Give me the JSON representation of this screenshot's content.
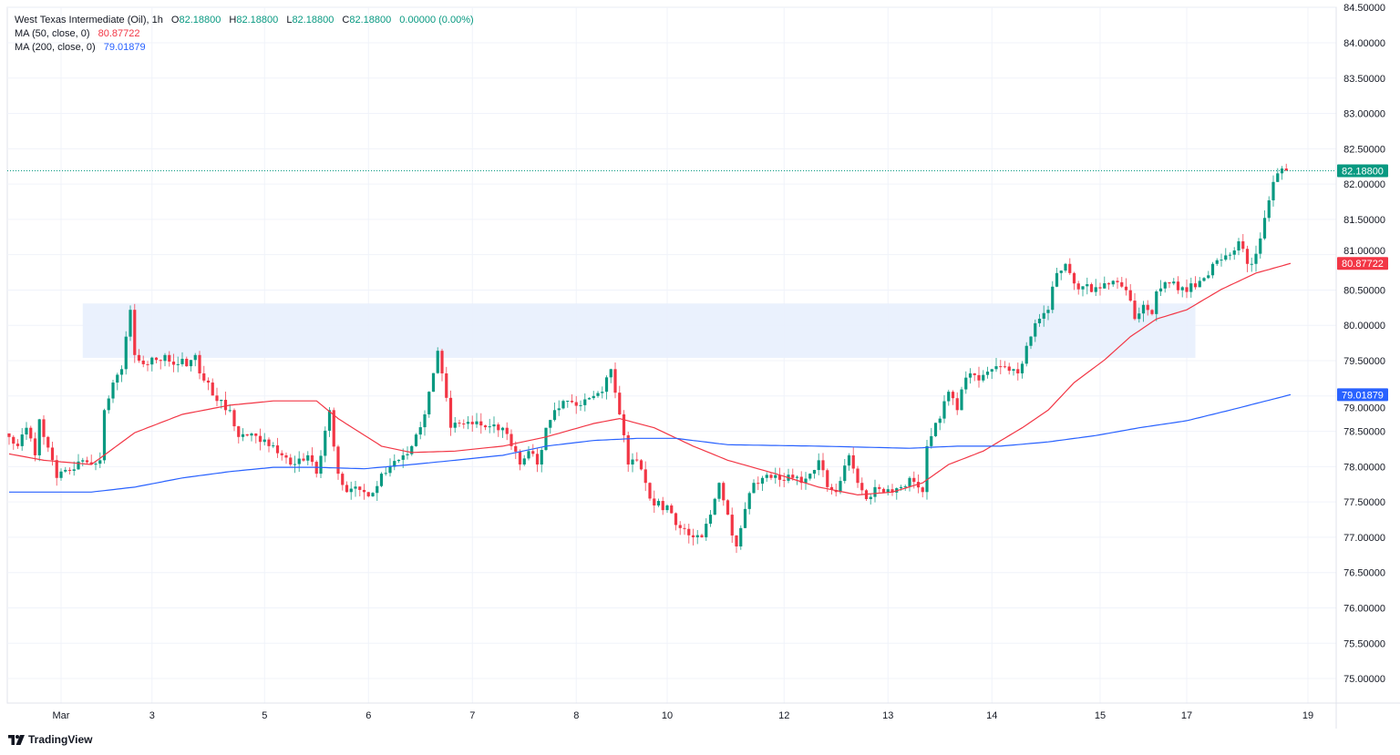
{
  "header": {
    "symbol": "West Texas Intermediate (Oil), 1h",
    "o_label": "O",
    "o": "82.18800",
    "h_label": "H",
    "h": "82.18800",
    "l_label": "L",
    "l": "82.18800",
    "c_label": "C",
    "c": "82.18800",
    "change": "0.00000 (0.00%)",
    "ma50_label": "MA (50, close, 0)",
    "ma50": "80.87722",
    "ma200_label": "MA (200, close, 0)",
    "ma200": "79.01879"
  },
  "branding": {
    "name": "TradingView"
  },
  "colors": {
    "up": "#089981",
    "down": "#f23645",
    "ma50": "#f23645",
    "ma200": "#2962ff",
    "zone": "#e8f0fd",
    "grid": "#f0f3fa"
  },
  "chart_data": {
    "type": "candlestick",
    "title": "West Texas Intermediate (Oil), 1h",
    "ylim": [
      74.75,
      84.6
    ],
    "y_ticks": [
      "75.00000",
      "75.50000",
      "76.00000",
      "76.50000",
      "77.00000",
      "77.50000",
      "78.00000",
      "78.50000",
      "79.00000",
      "79.50000",
      "80.00000",
      "80.50000",
      "81.00000",
      "81.50000",
      "82.00000",
      "82.50000",
      "83.00000",
      "83.50000",
      "84.00000",
      "84.50000"
    ],
    "x_ticks": [
      [
        "Mar",
        12
      ],
      [
        "3",
        33
      ],
      [
        "5",
        59
      ],
      [
        "6",
        83
      ],
      [
        "7",
        107
      ],
      [
        "8",
        131
      ],
      [
        "10",
        152
      ],
      [
        "12",
        179
      ],
      [
        "13",
        203
      ],
      [
        "14",
        227
      ],
      [
        "15",
        252
      ],
      [
        "17",
        272
      ],
      [
        "19",
        300
      ]
    ],
    "close_path": [
      [
        0,
        78.42
      ],
      [
        2,
        78.29
      ],
      [
        4,
        78.55
      ],
      [
        6,
        78.16
      ],
      [
        7,
        78.67
      ],
      [
        8,
        78.42
      ],
      [
        11,
        77.84
      ],
      [
        14,
        77.94
      ],
      [
        17,
        78.09
      ],
      [
        19,
        78.03
      ],
      [
        21,
        78.09
      ],
      [
        22,
        78.8
      ],
      [
        24,
        79.19
      ],
      [
        26,
        79.38
      ],
      [
        27,
        79.84
      ],
      [
        28,
        80.22
      ],
      [
        29,
        79.58
      ],
      [
        31,
        79.45
      ],
      [
        34,
        79.51
      ],
      [
        36,
        79.58
      ],
      [
        39,
        79.45
      ],
      [
        42,
        79.51
      ],
      [
        43,
        79.58
      ],
      [
        44,
        79.32
      ],
      [
        46,
        79.19
      ],
      [
        48,
        78.93
      ],
      [
        51,
        78.8
      ],
      [
        53,
        78.42
      ],
      [
        55,
        78.44
      ],
      [
        58,
        78.35
      ],
      [
        60,
        78.29
      ],
      [
        63,
        78.16
      ],
      [
        65,
        78.03
      ],
      [
        69,
        78.16
      ],
      [
        71,
        77.9
      ],
      [
        74,
        78.8
      ],
      [
        76,
        77.9
      ],
      [
        78,
        77.64
      ],
      [
        81,
        77.67
      ],
      [
        83,
        77.58
      ],
      [
        86,
        77.9
      ],
      [
        91,
        78.16
      ],
      [
        93,
        78.29
      ],
      [
        96,
        78.74
      ],
      [
        97,
        79.06
      ],
      [
        99,
        79.64
      ],
      [
        100,
        79.32
      ],
      [
        102,
        78.55
      ],
      [
        104,
        78.61
      ],
      [
        107,
        78.6
      ],
      [
        111,
        78.57
      ],
      [
        114,
        78.55
      ],
      [
        116,
        78.29
      ],
      [
        118,
        78.03
      ],
      [
        120,
        78.22
      ],
      [
        122,
        78.03
      ],
      [
        124,
        78.55
      ],
      [
        126,
        78.8
      ],
      [
        128,
        78.93
      ],
      [
        132,
        78.87
      ],
      [
        135,
        79.0
      ],
      [
        137,
        79.06
      ],
      [
        139,
        79.38
      ],
      [
        141,
        78.74
      ],
      [
        143,
        78.03
      ],
      [
        145,
        78.09
      ],
      [
        147,
        77.77
      ],
      [
        149,
        77.45
      ],
      [
        152,
        77.45
      ],
      [
        155,
        77.13
      ],
      [
        158,
        77.0
      ],
      [
        160,
        77.0
      ],
      [
        162,
        77.32
      ],
      [
        164,
        77.77
      ],
      [
        166,
        77.32
      ],
      [
        168,
        76.87
      ],
      [
        169,
        77.13
      ],
      [
        172,
        77.77
      ],
      [
        174,
        77.84
      ],
      [
        176,
        77.84
      ],
      [
        179,
        77.8
      ],
      [
        181,
        77.84
      ],
      [
        183,
        77.77
      ],
      [
        185,
        77.9
      ],
      [
        187,
        78.09
      ],
      [
        189,
        77.71
      ],
      [
        191,
        77.64
      ],
      [
        194,
        78.16
      ],
      [
        196,
        77.77
      ],
      [
        198,
        77.54
      ],
      [
        200,
        77.71
      ],
      [
        203,
        77.68
      ],
      [
        206,
        77.71
      ],
      [
        208,
        77.84
      ],
      [
        211,
        77.64
      ],
      [
        212,
        78.29
      ],
      [
        215,
        78.68
      ],
      [
        217,
        79.06
      ],
      [
        219,
        78.8
      ],
      [
        221,
        79.26
      ],
      [
        222,
        79.32
      ],
      [
        224,
        79.22
      ],
      [
        227,
        79.38
      ],
      [
        229,
        79.42
      ],
      [
        232,
        79.38
      ],
      [
        233,
        79.32
      ],
      [
        235,
        79.71
      ],
      [
        237,
        80.03
      ],
      [
        240,
        80.22
      ],
      [
        242,
        80.74
      ],
      [
        244,
        80.87
      ],
      [
        245,
        80.74
      ],
      [
        247,
        80.51
      ],
      [
        251,
        80.54
      ],
      [
        254,
        80.58
      ],
      [
        256,
        80.61
      ],
      [
        259,
        80.35
      ],
      [
        260,
        80.09
      ],
      [
        262,
        80.29
      ],
      [
        264,
        80.16
      ],
      [
        265,
        80.48
      ],
      [
        267,
        80.61
      ],
      [
        271,
        80.54
      ],
      [
        274,
        80.54
      ],
      [
        276,
        80.67
      ],
      [
        278,
        80.87
      ],
      [
        280,
        80.93
      ],
      [
        282,
        81.0
      ],
      [
        283,
        81.06
      ],
      [
        284,
        81.19
      ],
      [
        286,
        80.87
      ],
      [
        287,
        80.87
      ],
      [
        289,
        81.23
      ],
      [
        291,
        81.77
      ],
      [
        292,
        82.03
      ],
      [
        294,
        82.22
      ],
      [
        295,
        82.19
      ]
    ],
    "ma50": [
      [
        0,
        78.18
      ],
      [
        8,
        78.09
      ],
      [
        19,
        78.03
      ],
      [
        29,
        78.48
      ],
      [
        40,
        78.74
      ],
      [
        51,
        78.87
      ],
      [
        61,
        78.93
      ],
      [
        71,
        78.93
      ],
      [
        76,
        78.68
      ],
      [
        86,
        78.29
      ],
      [
        93,
        78.2
      ],
      [
        103,
        78.22
      ],
      [
        114,
        78.29
      ],
      [
        124,
        78.42
      ],
      [
        135,
        78.61
      ],
      [
        141,
        78.68
      ],
      [
        149,
        78.55
      ],
      [
        158,
        78.29
      ],
      [
        166,
        78.09
      ],
      [
        177,
        77.9
      ],
      [
        187,
        77.71
      ],
      [
        196,
        77.6
      ],
      [
        204,
        77.64
      ],
      [
        211,
        77.77
      ],
      [
        217,
        78.03
      ],
      [
        225,
        78.22
      ],
      [
        234,
        78.55
      ],
      [
        240,
        78.8
      ],
      [
        246,
        79.19
      ],
      [
        253,
        79.51
      ],
      [
        259,
        79.84
      ],
      [
        265,
        80.09
      ],
      [
        272,
        80.22
      ],
      [
        280,
        80.51
      ],
      [
        288,
        80.74
      ],
      [
        296,
        80.877
      ]
    ],
    "ma200": [
      [
        0,
        77.64
      ],
      [
        19,
        77.64
      ],
      [
        29,
        77.71
      ],
      [
        40,
        77.84
      ],
      [
        51,
        77.93
      ],
      [
        61,
        77.99
      ],
      [
        71,
        77.99
      ],
      [
        82,
        77.97
      ],
      [
        93,
        78.03
      ],
      [
        103,
        78.09
      ],
      [
        114,
        78.16
      ],
      [
        124,
        78.29
      ],
      [
        135,
        78.37
      ],
      [
        145,
        78.4
      ],
      [
        154,
        78.4
      ],
      [
        166,
        78.31
      ],
      [
        187,
        78.29
      ],
      [
        208,
        78.26
      ],
      [
        219,
        78.29
      ],
      [
        229,
        78.29
      ],
      [
        240,
        78.35
      ],
      [
        251,
        78.44
      ],
      [
        261,
        78.55
      ],
      [
        272,
        78.65
      ],
      [
        282,
        78.8
      ],
      [
        296,
        79.019
      ]
    ],
    "zone": {
      "price_top": 80.31,
      "price_bottom": 79.54,
      "bar_start": 17,
      "bar_end": 274
    },
    "last_price": {
      "value": 82.188,
      "label": "82.18800"
    },
    "ma50_tag": {
      "value": 80.87722,
      "label": "80.87722"
    },
    "ma200_tag": {
      "value": 79.01879,
      "label": "79.01879"
    }
  }
}
